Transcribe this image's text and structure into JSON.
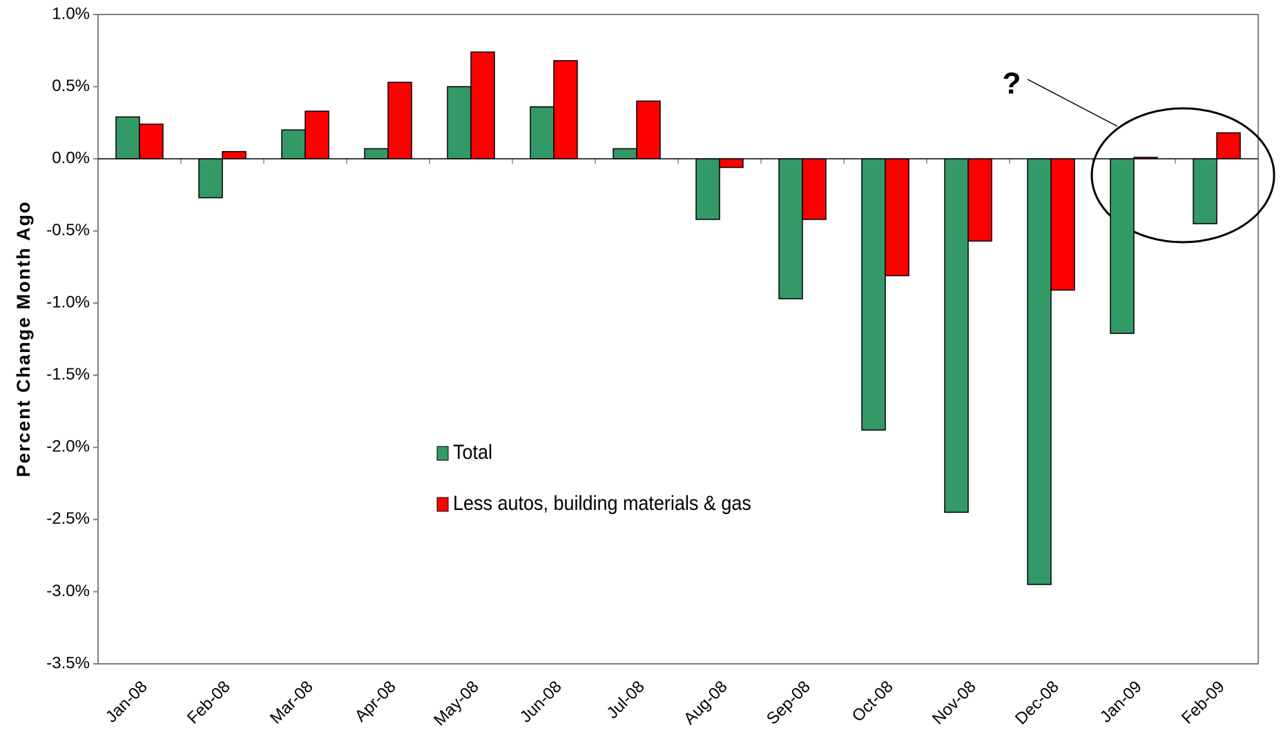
{
  "chart_data": {
    "type": "bar",
    "y_label": "Percent Change Month Ago",
    "categories": [
      "Jan-08",
      "Feb-08",
      "Mar-08",
      "Apr-08",
      "May-08",
      "Jun-08",
      "Jul-08",
      "Aug-08",
      "Sep-08",
      "Oct-08",
      "Nov-08",
      "Dec-08",
      "Jan-09",
      "Feb-09"
    ],
    "series": [
      {
        "name": "Total",
        "color": "#339966",
        "values": [
          0.29,
          -0.27,
          0.2,
          0.07,
          0.5,
          0.36,
          0.07,
          -0.42,
          -0.97,
          -1.88,
          -2.45,
          -2.95,
          -1.21,
          -0.45
        ]
      },
      {
        "name": "Less autos, building materials & gas",
        "color": "#ff0000",
        "values": [
          0.24,
          0.05,
          0.33,
          0.53,
          0.74,
          0.68,
          0.4,
          -0.06,
          -0.42,
          -0.81,
          -0.57,
          -0.91,
          0.01,
          0.18
        ]
      }
    ],
    "ylim": [
      -3.5,
      1.0
    ],
    "yticks": [
      {
        "value": -3.5,
        "label": "-3.5%"
      },
      {
        "value": -3.0,
        "label": "-3.0%"
      },
      {
        "value": -2.5,
        "label": "-2.5%"
      },
      {
        "value": -2.0,
        "label": "-2.0%"
      },
      {
        "value": -1.5,
        "label": "-1.5%"
      },
      {
        "value": -1.0,
        "label": "-1.0%"
      },
      {
        "value": -0.5,
        "label": "-0.5%"
      },
      {
        "value": 0.0,
        "label": "0.0%"
      },
      {
        "value": 0.5,
        "label": "0.5%"
      },
      {
        "value": 1.0,
        "label": "1.0%"
      }
    ],
    "annotation": "?",
    "grid": false
  }
}
